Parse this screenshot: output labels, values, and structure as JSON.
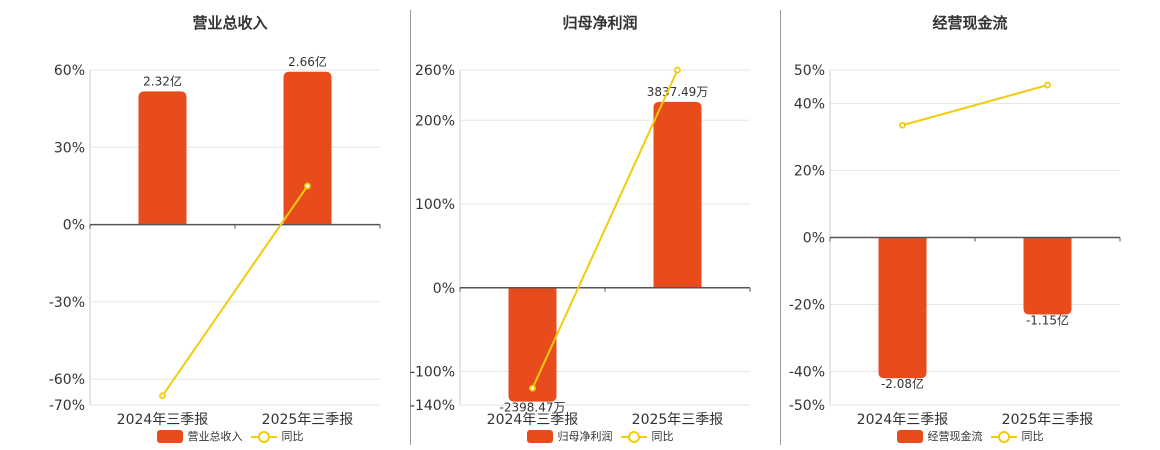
{
  "colors": {
    "bar": "#E84B1C",
    "line": "#F2CC0C",
    "axis": "#555555",
    "grid": "#e6e6e6"
  },
  "charts": [
    {
      "title": "营业总收入",
      "legend": {
        "bar": "营业总收入",
        "line": "同比"
      },
      "chart_data": {
        "type": "bar",
        "title": "营业总收入",
        "categories": [
          "2024年三季报",
          "2025年三季报"
        ],
        "series": [
          {
            "name": "营业总收入",
            "type": "bar",
            "values": [
              51.7,
              59.3
            ],
            "labels": [
              "2.32亿",
              "2.66亿"
            ]
          },
          {
            "name": "同比",
            "type": "line",
            "values": [
              -66.4,
              15.0
            ]
          }
        ],
        "ylim": [
          -70,
          60
        ],
        "yticks": [
          60,
          30,
          0,
          -30,
          -60,
          -70
        ],
        "ytick_labels": [
          "60%",
          "30%",
          "0%",
          "-30%",
          "-60%",
          "-70%"
        ],
        "grid": true,
        "legend_position": "bottom"
      }
    },
    {
      "title": "归母净利润",
      "legend": {
        "bar": "归母净利润",
        "line": "同比"
      },
      "chart_data": {
        "type": "bar",
        "title": "归母净利润",
        "categories": [
          "2024年三季报",
          "2025年三季报"
        ],
        "series": [
          {
            "name": "归母净利润",
            "type": "bar",
            "values": [
              -136,
              222
            ],
            "labels": [
              "-2398.47万",
              "3837.49万"
            ]
          },
          {
            "name": "同比",
            "type": "line",
            "values": [
              -120,
              260
            ]
          }
        ],
        "ylim": [
          -140,
          260
        ],
        "yticks": [
          260,
          200,
          100,
          0,
          -100,
          -140
        ],
        "ytick_labels": [
          "260%",
          "200%",
          "100%",
          "0%",
          "-100%",
          "-140%"
        ],
        "grid": true,
        "legend_position": "bottom"
      }
    },
    {
      "title": "经营现金流",
      "legend": {
        "bar": "经营现金流",
        "line": "同比"
      },
      "chart_data": {
        "type": "bar",
        "title": "经营现金流",
        "categories": [
          "2024年三季报",
          "2025年三季报"
        ],
        "series": [
          {
            "name": "经营现金流",
            "type": "bar",
            "values": [
              -42,
              -23
            ],
            "labels": [
              "-2.08亿",
              "-1.15亿"
            ]
          },
          {
            "name": "同比",
            "type": "line",
            "values": [
              33.5,
              45.5
            ]
          }
        ],
        "ylim": [
          -50,
          50
        ],
        "yticks": [
          50,
          40,
          20,
          0,
          -20,
          -40,
          -50
        ],
        "ytick_labels": [
          "50%",
          "40%",
          "20%",
          "0%",
          "-20%",
          "-40%",
          "-50%"
        ],
        "grid": true,
        "legend_position": "bottom"
      }
    }
  ]
}
